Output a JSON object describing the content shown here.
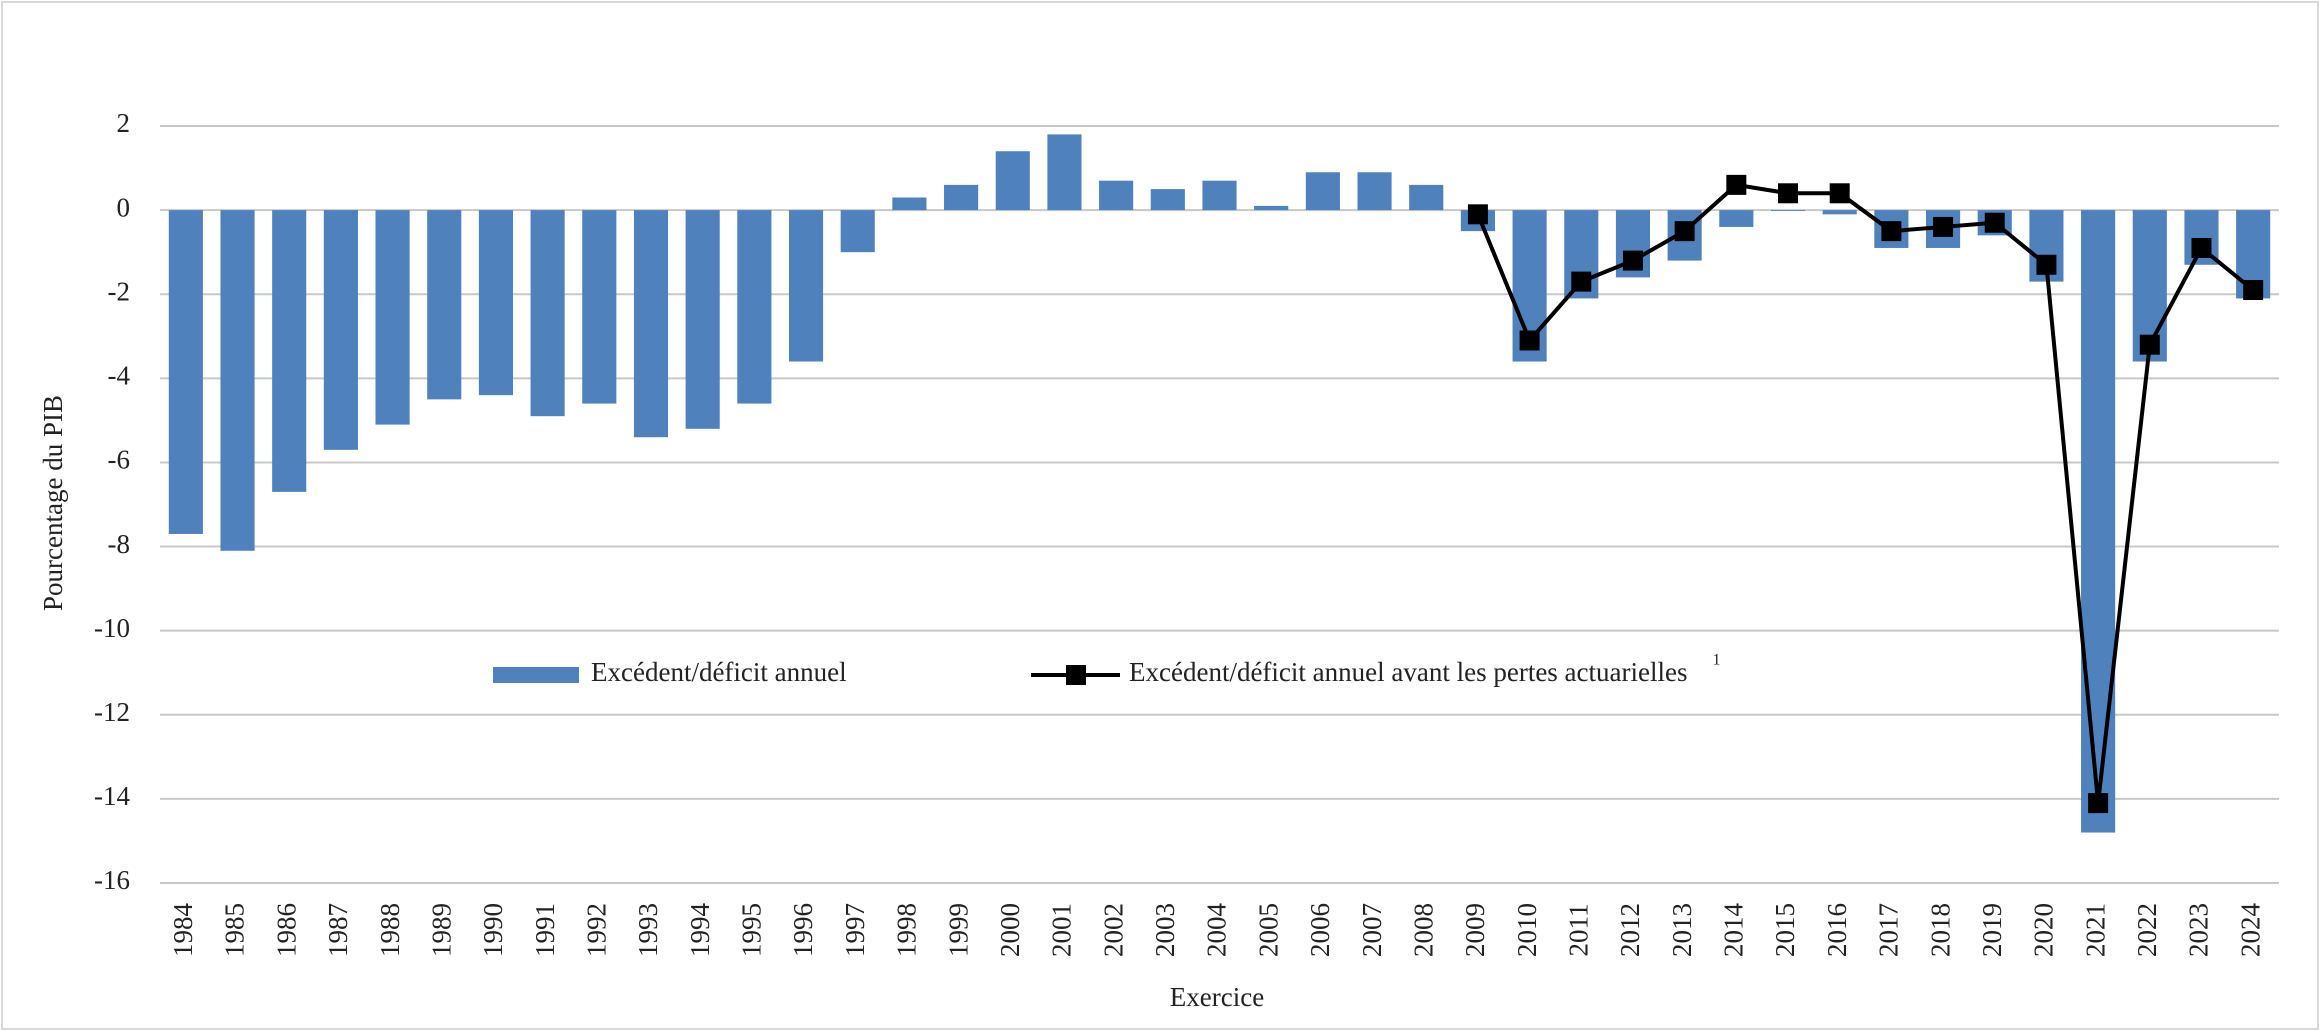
{
  "chart_data": {
    "type": "bar",
    "y_label": "Pourcentage du PIB",
    "x_label": "Exercice",
    "categories": [
      "1984",
      "1985",
      "1986",
      "1987",
      "1988",
      "1989",
      "1990",
      "1991",
      "1992",
      "1993",
      "1994",
      "1995",
      "1996",
      "1997",
      "1998",
      "1999",
      "2000",
      "2001",
      "2002",
      "2003",
      "2004",
      "2005",
      "2006",
      "2007",
      "2008",
      "2009",
      "2010",
      "2011",
      "2012",
      "2013",
      "2014",
      "2015",
      "2016",
      "2017",
      "2018",
      "2019",
      "2020",
      "2021",
      "2022",
      "2023",
      "2024"
    ],
    "series": [
      {
        "name": "Excédent/déficit annuel",
        "type": "bar",
        "color": "#4f81bd",
        "values": [
          -7.7,
          -8.1,
          -6.7,
          -5.7,
          -5.1,
          -4.5,
          -4.4,
          -4.9,
          -4.6,
          -5.4,
          -5.2,
          -4.6,
          -3.6,
          -1.0,
          0.3,
          0.6,
          1.4,
          1.8,
          0.7,
          0.5,
          0.7,
          0.1,
          0.9,
          0.9,
          0.6,
          -0.5,
          -3.6,
          -2.1,
          -1.6,
          -1.2,
          -0.4,
          -0.02,
          -0.1,
          -0.9,
          -0.9,
          -0.6,
          -1.7,
          -14.8,
          -3.6,
          -1.3,
          -2.1
        ]
      },
      {
        "name": "Excédent/déficit annuel avant les pertes actuarielles",
        "footnote": "1",
        "type": "line",
        "color": "#000000",
        "values": [
          null,
          null,
          null,
          null,
          null,
          null,
          null,
          null,
          null,
          null,
          null,
          null,
          null,
          null,
          null,
          null,
          null,
          null,
          null,
          null,
          null,
          null,
          null,
          null,
          null,
          -0.1,
          -3.1,
          -1.7,
          -1.2,
          -0.5,
          0.6,
          0.4,
          0.4,
          -0.5,
          -0.4,
          -0.3,
          -1.3,
          -14.1,
          -3.2,
          -0.9,
          -1.9
        ]
      }
    ],
    "ylim": [
      -16,
      2
    ],
    "yticks": [
      -16,
      -14,
      -12,
      -10,
      -8,
      -6,
      -4,
      -2,
      0,
      2
    ],
    "grid": true
  }
}
